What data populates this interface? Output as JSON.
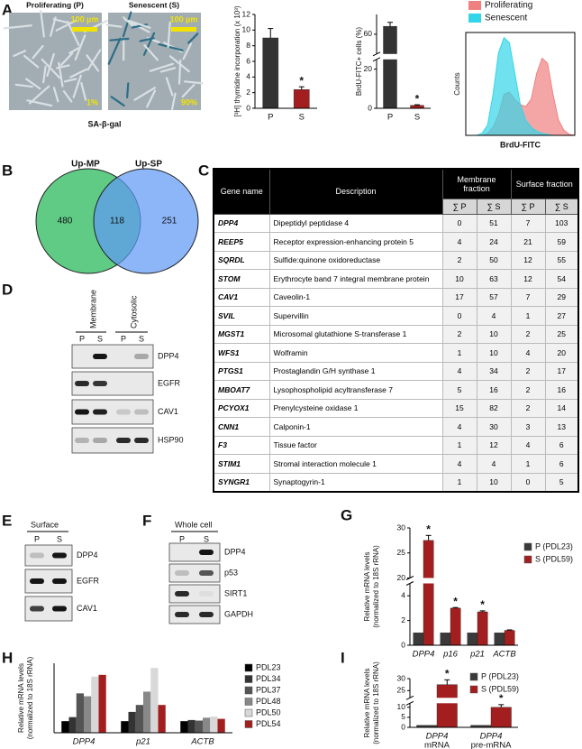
{
  "panel_labels": [
    "A",
    "B",
    "C",
    "D",
    "E",
    "F",
    "G",
    "H",
    "I"
  ],
  "micrographs": {
    "images": [
      {
        "title": "Proliferating (P)",
        "scale_bar": "100 µm",
        "percent": "1%"
      },
      {
        "title": "Senescent (S)",
        "scale_bar": "100 µm",
        "percent": "90%"
      }
    ],
    "caption": "SA-β-gal"
  },
  "chart_data": [
    {
      "type": "bar",
      "y_label": "[³H] thymidine incorporation (x 10³)",
      "categories": [
        "P",
        "S"
      ],
      "values": [
        9,
        2.4
      ],
      "errors": [
        1.2,
        0.35
      ],
      "colors": [
        "#333333",
        "#a31f1f"
      ],
      "annotations": [
        null,
        "*"
      ],
      "ylim": [
        0,
        12
      ],
      "yticks": [
        0,
        2,
        4,
        6,
        8,
        10,
        12
      ]
    },
    {
      "type": "bar",
      "y_label": "BrdU-FITC+ cells (%)",
      "categories": [
        "P",
        "S"
      ],
      "values": [
        62,
        1.5
      ],
      "errors": [
        1,
        0.3
      ],
      "colors": [
        "#333333",
        "#a31f1f"
      ],
      "annotations": [
        null,
        "*"
      ],
      "ylim": [
        0,
        65
      ],
      "yticks": [
        0,
        20,
        60
      ],
      "axis_break": [
        25,
        55
      ]
    },
    {
      "type": "area",
      "x_label": "BrdU-FITC",
      "y_label": "Counts",
      "legend": "top",
      "x": [
        0,
        5,
        10,
        15,
        20,
        25,
        30,
        35,
        40,
        45,
        50,
        55,
        60,
        65,
        70,
        75,
        80,
        85,
        90,
        95,
        100
      ],
      "xlim": [
        0,
        100
      ],
      "ylim": [
        0,
        100
      ],
      "series": [
        {
          "name": "Proliferating",
          "color": "#f08080",
          "values": [
            0,
            0,
            0,
            0,
            2,
            8,
            20,
            40,
            42,
            35,
            30,
            28,
            35,
            60,
            75,
            70,
            40,
            15,
            5,
            1,
            0
          ]
        },
        {
          "name": "Senescent",
          "color": "#33d6e8",
          "values": [
            0,
            0,
            0,
            2,
            10,
            40,
            80,
            95,
            90,
            60,
            30,
            15,
            8,
            4,
            2,
            1,
            0,
            0,
            0,
            0,
            0
          ]
        }
      ]
    },
    {
      "type": "bar",
      "y_label": [
        "Relative mRNA levels",
        "(normalized to 18S rRNA)"
      ],
      "categories": [
        "DPP4",
        "p16",
        "p21",
        "ACTB"
      ],
      "category_italic": true,
      "legend": "right",
      "series": [
        {
          "name": "P (PDL23)",
          "color": "#3a3a3a",
          "values": [
            1,
            1,
            1,
            1
          ]
        },
        {
          "name": "S (PDL59)",
          "color": "#a31f1f",
          "values": [
            27.5,
            3,
            2.7,
            1.2
          ],
          "errors": [
            1,
            0.05,
            0.08,
            0.04
          ],
          "annotations": [
            "*",
            "*",
            "*",
            null
          ]
        }
      ],
      "ylim": [
        0,
        30
      ],
      "yticks": [
        0,
        2,
        4,
        20,
        25,
        30
      ],
      "axis_break": [
        5,
        20
      ]
    },
    {
      "type": "bar",
      "y_label": [
        "Relative mRNA levels",
        "(normalized to 18S rRNA)"
      ],
      "categories": [
        "DPP4",
        "p21",
        "ACTB"
      ],
      "category_italic": true,
      "legend": "right",
      "ylim": [
        0,
        6
      ],
      "series": [
        {
          "name": "PDL23",
          "color": "#000000",
          "values": [
            1,
            1,
            1
          ]
        },
        {
          "name": "PDL34",
          "color": "#333333",
          "values": [
            1.35,
            1.8,
            1.1
          ]
        },
        {
          "name": "PDL37",
          "color": "#555555",
          "values": [
            3.4,
            2.4,
            1.05
          ]
        },
        {
          "name": "PDL48",
          "color": "#888888",
          "values": [
            3.15,
            3.55,
            1.3
          ]
        },
        {
          "name": "PDL50",
          "color": "#d8d8d8",
          "values": [
            4.85,
            5.6,
            1.4
          ]
        },
        {
          "name": "PDL54",
          "color": "#a31f1f",
          "values": [
            5,
            2.4,
            1.2
          ]
        }
      ]
    },
    {
      "type": "bar",
      "y_label": [
        "Relative mRNA levels",
        "(normalized to 18S rRNA)"
      ],
      "categories": [
        [
          "DPP4",
          "mRNA"
        ],
        [
          "DPP4",
          "pre-mRNA"
        ]
      ],
      "category_italic": true,
      "legend": "right",
      "series": [
        {
          "name": "P (PDL23)",
          "color": "#3a3a3a",
          "values": [
            1,
            1
          ]
        },
        {
          "name": "S (PDL59)",
          "color": "#a31f1f",
          "values": [
            27.5,
            10
          ],
          "errors": [
            2,
            1.3
          ],
          "annotations": [
            "*",
            "*"
          ]
        }
      ],
      "ylim": [
        0,
        30
      ],
      "yticks": [
        0,
        5,
        10,
        25,
        30
      ],
      "axis_break": [
        12,
        22
      ]
    }
  ],
  "venn": {
    "sets": [
      "Up-MP",
      "Up-SP"
    ],
    "left_only": 480,
    "both": 118,
    "right_only": 251
  },
  "table": {
    "columns": [
      "Gene name",
      "Description",
      "Membrane fraction",
      "Surface fraction"
    ],
    "subcolumns": [
      "∑ P",
      "∑ S",
      "∑ P",
      "∑ S"
    ],
    "rows": [
      [
        "DPP4",
        "Dipeptidyl peptidase 4",
        0,
        51,
        7,
        103
      ],
      [
        "REEP5",
        "Receptor expression-enhancing protein 5",
        4,
        24,
        21,
        59
      ],
      [
        "SQRDL",
        "Sulfide:quinone oxidoreductase",
        2,
        50,
        12,
        55
      ],
      [
        "STOM",
        "Erythrocyte band 7 integral membrane protein",
        10,
        63,
        12,
        54
      ],
      [
        "CAV1",
        "Caveolin-1",
        17,
        57,
        7,
        29
      ],
      [
        "SVIL",
        "Supervillin",
        0,
        4,
        1,
        27
      ],
      [
        "MGST1",
        "Microsomal glutathione S-transferase 1",
        2,
        10,
        2,
        25
      ],
      [
        "WFS1",
        "Wolframin",
        1,
        10,
        4,
        20
      ],
      [
        "PTGS1",
        "Prostaglandin G/H synthase 1",
        4,
        34,
        2,
        17
      ],
      [
        "MBOAT7",
        "Lysophospholipid acyltransferase 7",
        5,
        16,
        2,
        16
      ],
      [
        "PCYOX1",
        "Prenylcysteine oxidase 1",
        15,
        82,
        2,
        14
      ],
      [
        "CNN1",
        "Calponin-1",
        4,
        30,
        3,
        13
      ],
      [
        "F3",
        "Tissue factor",
        1,
        12,
        4,
        6
      ],
      [
        "STIM1",
        "Stromal interaction molecule 1",
        4,
        4,
        1,
        6
      ],
      [
        "SYNGR1",
        "Synaptogyrin-1",
        1,
        10,
        0,
        5
      ]
    ]
  },
  "blots": [
    {
      "header": [
        "Membrane",
        "Cytosolic"
      ],
      "lanes": [
        "P",
        "S",
        "P",
        "S"
      ],
      "proteins": [
        "DPP4",
        "EGFR",
        "CAV1",
        "HSP90"
      ]
    },
    {
      "header": [
        "Surface"
      ],
      "lanes": [
        "P",
        "S"
      ],
      "proteins": [
        "DPP4",
        "EGFR",
        "CAV1"
      ]
    },
    {
      "header": [
        "Whole cell"
      ],
      "lanes": [
        "P",
        "S"
      ],
      "proteins": [
        "DPP4",
        "p53",
        "SIRT1",
        "GAPDH"
      ]
    }
  ]
}
